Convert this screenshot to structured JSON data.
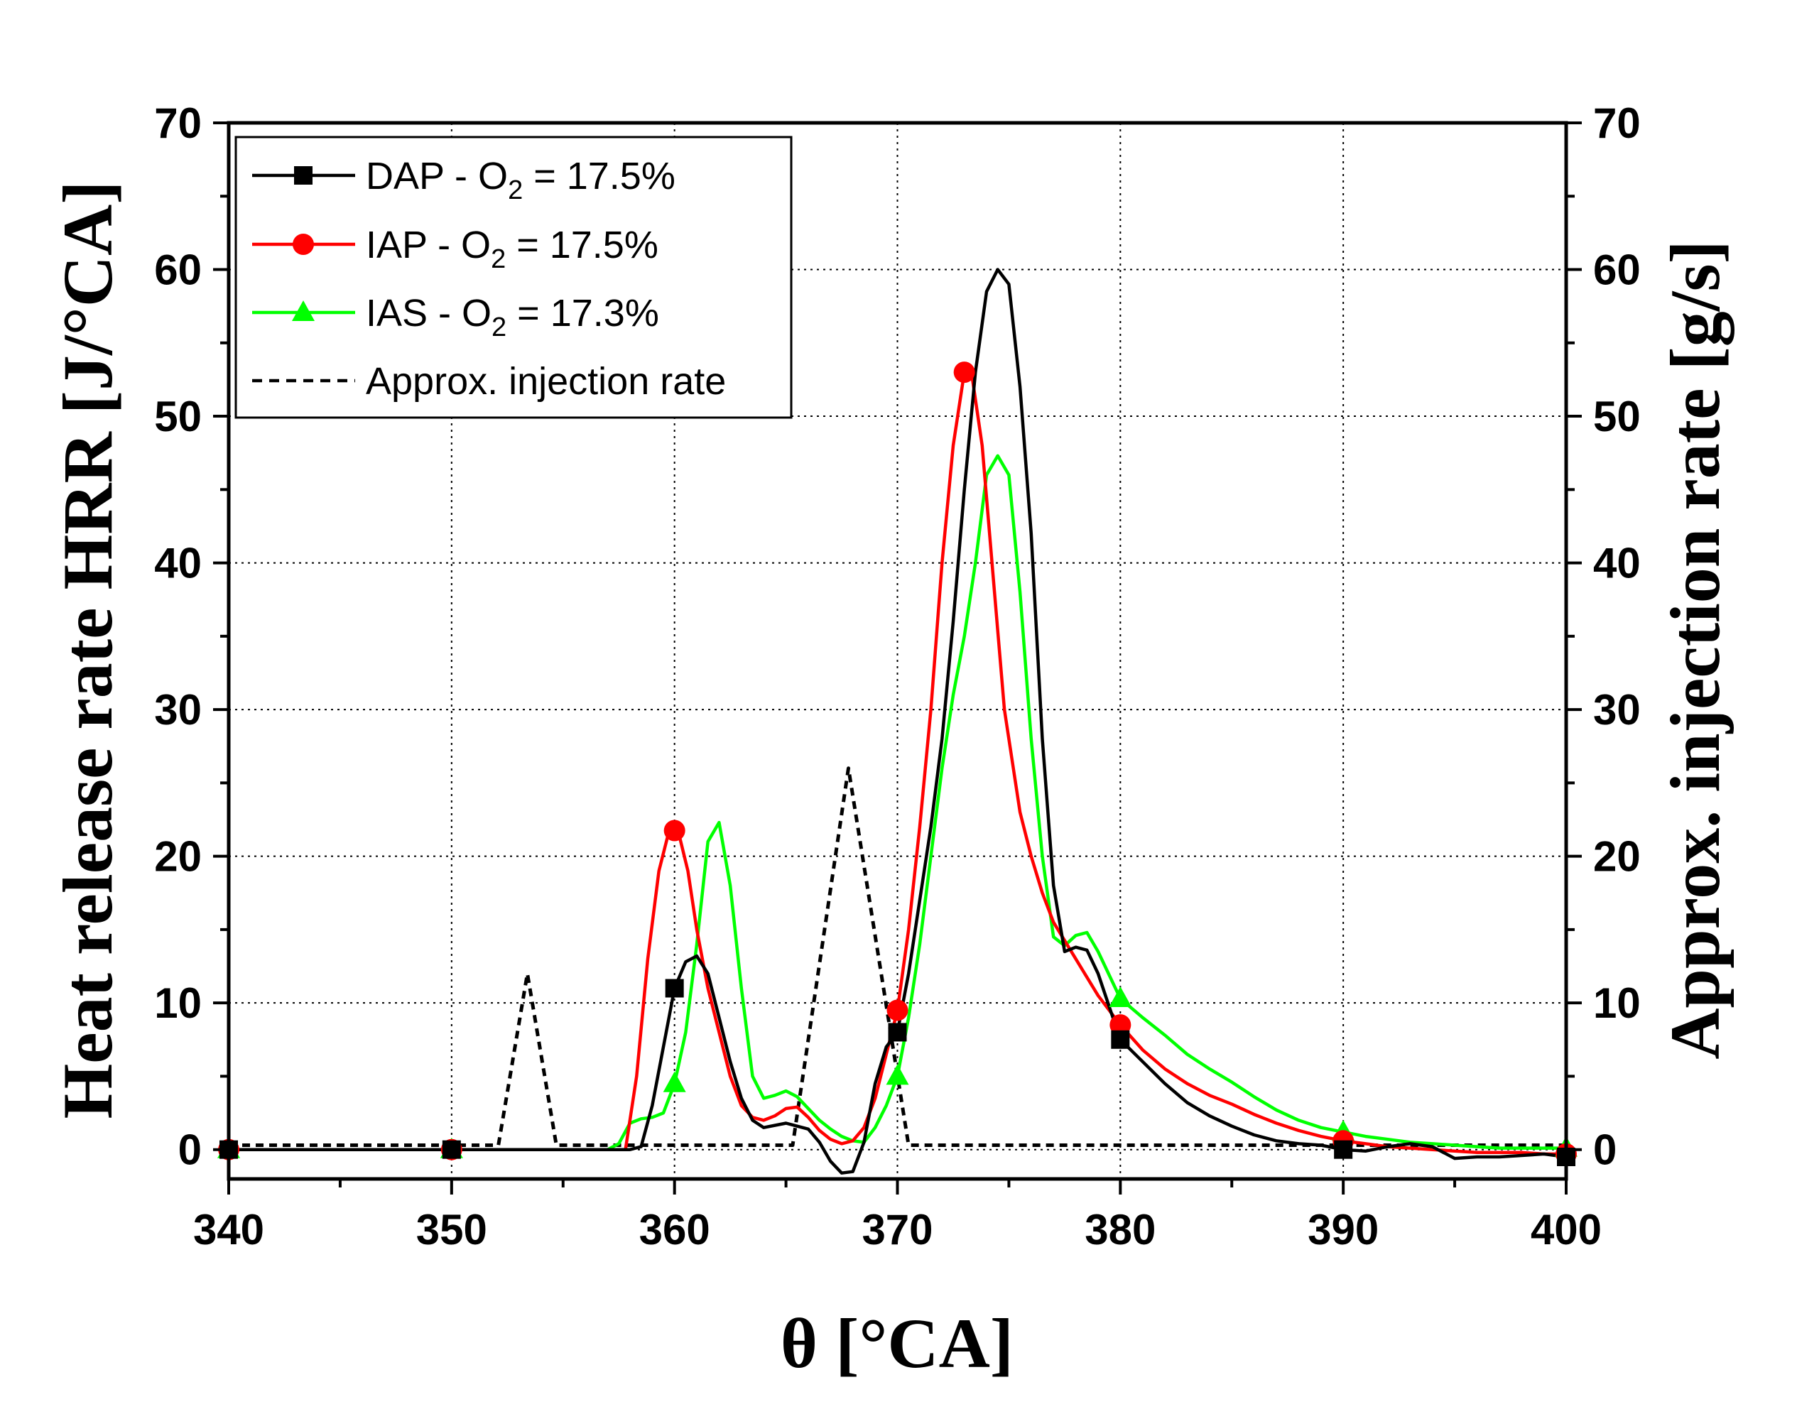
{
  "chart_data": {
    "type": "line",
    "title": "",
    "xlabel": "θ [°CA]",
    "ylabel_left": "Heat release rate HRR [J/°CA]",
    "ylabel_right": "Approx. injection rate [g/s]",
    "xlim": [
      340,
      400
    ],
    "ylim": [
      -2,
      70
    ],
    "xticks": [
      340,
      350,
      360,
      370,
      380,
      390,
      400
    ],
    "yticks": [
      0,
      10,
      20,
      30,
      40,
      50,
      60,
      70
    ],
    "x_tick_labels": [
      "340",
      "350",
      "360",
      "370",
      "380",
      "390",
      "400"
    ],
    "y_tick_labels_left": [
      "0",
      "10",
      "20",
      "30",
      "40",
      "50",
      "60",
      "70"
    ],
    "y_tick_labels_right": [
      "0",
      "10",
      "20",
      "30",
      "40",
      "50",
      "60",
      "70"
    ],
    "grid": "dotted",
    "legend_position": "top-left",
    "series": [
      {
        "name": "DAP - O2 = 17.5%",
        "legend": {
          "prefix": "DAP  - O",
          "sub": "2",
          "suffix": " = 17.5%"
        },
        "color": "#000000",
        "dash": "solid",
        "marker": "square",
        "marker_x": [
          340,
          350,
          360,
          370,
          380,
          390,
          400
        ],
        "x": [
          340,
          350,
          355,
          358,
          358.5,
          359,
          359.5,
          360,
          360.5,
          361,
          361.5,
          362,
          362.5,
          363,
          363.5,
          364,
          365,
          366,
          366.5,
          367,
          367.5,
          368,
          368.5,
          369,
          369.5,
          370,
          370.5,
          371,
          371.5,
          372,
          372.5,
          373,
          373.5,
          374,
          374.5,
          375,
          375.5,
          376,
          376.5,
          377,
          377.5,
          378,
          378.5,
          379,
          380,
          381,
          382,
          383,
          384,
          385,
          386,
          387,
          388,
          389,
          390,
          391,
          392,
          393,
          394,
          395,
          396,
          397,
          398,
          399,
          400
        ],
        "y": [
          0,
          0,
          0,
          0,
          0.2,
          3,
          7,
          11,
          12.8,
          13.2,
          12,
          9,
          6,
          3.5,
          2,
          1.5,
          1.8,
          1.4,
          0.5,
          -0.8,
          -1.6,
          -1.5,
          0.5,
          4.5,
          7,
          8,
          12,
          17,
          22,
          28,
          36,
          45,
          53,
          58.5,
          60,
          59,
          52,
          42,
          28,
          18,
          13.5,
          13.8,
          13.6,
          12,
          7.5,
          6,
          4.5,
          3.2,
          2.3,
          1.6,
          1.0,
          0.6,
          0.4,
          0.3,
          0,
          -0.1,
          0.2,
          0.4,
          0.2,
          -0.6,
          -0.5,
          -0.5,
          -0.4,
          -0.3,
          -0.5
        ]
      },
      {
        "name": "IAP - O2 = 17.5%",
        "legend": {
          "prefix": "IAP  - O",
          "sub": "2",
          "suffix": " = 17.5%"
        },
        "color": "#ff0000",
        "dash": "solid",
        "marker": "circle",
        "marker_x": [
          340,
          350,
          360,
          370,
          373,
          380,
          390,
          400
        ],
        "x": [
          340,
          350,
          357,
          357.8,
          358.3,
          358.8,
          359.3,
          359.8,
          360.2,
          360.6,
          361,
          361.5,
          362,
          362.5,
          363,
          363.5,
          364,
          364.5,
          365,
          365.5,
          366,
          366.5,
          367,
          367.5,
          368,
          368.5,
          369,
          369.5,
          370,
          370.5,
          371,
          371.5,
          372,
          372.5,
          373,
          373.3,
          373.8,
          374.3,
          374.8,
          375.5,
          376,
          376.5,
          377,
          378,
          379,
          380,
          381,
          382,
          383,
          384,
          385,
          386,
          387,
          388,
          389,
          390,
          391,
          392,
          393,
          394,
          395,
          396,
          397,
          398,
          399,
          400
        ],
        "y": [
          0,
          0,
          0,
          0,
          5,
          13,
          19,
          22,
          21.5,
          19,
          15,
          11,
          8,
          5,
          3,
          2.2,
          2.0,
          2.3,
          2.8,
          2.9,
          2.2,
          1.3,
          0.7,
          0.4,
          0.6,
          1.5,
          3.5,
          6.5,
          9.5,
          15,
          22,
          30,
          40,
          48,
          53,
          53.2,
          48,
          39,
          30,
          23,
          20,
          17.5,
          15.5,
          13,
          10.5,
          8.5,
          6.8,
          5.5,
          4.5,
          3.7,
          3.1,
          2.4,
          1.8,
          1.3,
          0.9,
          0.6,
          0.4,
          0.2,
          0.1,
          0,
          -0.1,
          -0.2,
          -0.2,
          -0.2,
          -0.3,
          -0.3
        ]
      },
      {
        "name": "IAS - O2 = 17.3%",
        "legend": {
          "prefix": "IAS  - O",
          "sub": "2",
          "suffix": " = 17.3%"
        },
        "color": "#00ff00",
        "dash": "solid",
        "marker": "triangle",
        "marker_x": [
          340,
          350,
          360,
          370,
          380,
          390,
          400
        ],
        "x": [
          340,
          350,
          357,
          357.5,
          358,
          358.5,
          359,
          359.5,
          360,
          360.5,
          361,
          361.5,
          362,
          362.5,
          363,
          363.5,
          364,
          364.5,
          365,
          365.5,
          366,
          366.5,
          367,
          367.5,
          368,
          368.5,
          369,
          369.5,
          370,
          370.5,
          371,
          371.5,
          372,
          372.5,
          373,
          373.5,
          374,
          374.5,
          375,
          375.5,
          376,
          376.5,
          377,
          377.5,
          378,
          378.5,
          379,
          380,
          381,
          382,
          383,
          384,
          385,
          386,
          387,
          388,
          389,
          390,
          391,
          392,
          393,
          394,
          395,
          396,
          397,
          398,
          399,
          400
        ],
        "y": [
          0,
          0,
          0,
          0.4,
          1.8,
          2.1,
          2.2,
          2.5,
          4.5,
          8,
          14,
          21,
          22.3,
          18,
          11,
          5,
          3.5,
          3.7,
          4,
          3.6,
          2.8,
          2.0,
          1.4,
          0.9,
          0.6,
          0.5,
          1.5,
          3,
          5,
          9,
          14,
          20,
          26,
          31,
          35,
          40,
          46,
          47.3,
          46,
          38,
          28,
          20,
          14.5,
          13.9,
          14.6,
          14.8,
          13.5,
          10.3,
          9.0,
          7.8,
          6.5,
          5.5,
          4.6,
          3.6,
          2.7,
          2.0,
          1.5,
          1.2,
          0.9,
          0.7,
          0.5,
          0.4,
          0.3,
          0.2,
          0.1,
          0.1,
          0.1,
          0.1
        ]
      },
      {
        "name": "Approx. injection rate",
        "legend": {
          "prefix": "Approx. injection rate",
          "sub": "",
          "suffix": ""
        },
        "color": "#000000",
        "dash": "dashed",
        "marker": "none",
        "marker_x": [],
        "x": [
          340,
          352.1,
          353.4,
          354.7,
          365.3,
          367.8,
          370.5,
          400
        ],
        "y": [
          0.3,
          0.3,
          12,
          0.3,
          0.3,
          26,
          0.3,
          0.3
        ]
      }
    ]
  }
}
